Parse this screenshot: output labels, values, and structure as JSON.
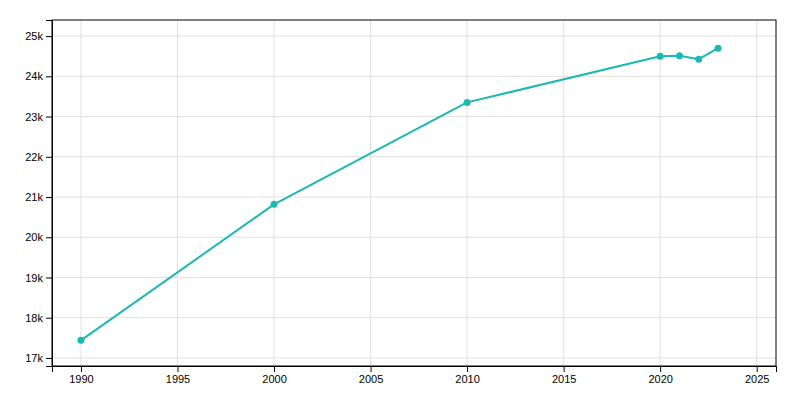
{
  "chart_data": {
    "type": "line",
    "x": [
      1990,
      2000,
      2010,
      2020,
      2021,
      2022,
      2023
    ],
    "values": [
      17438,
      20818,
      23352,
      24500,
      24512,
      24425,
      24700
    ],
    "color": "#1cb8b4",
    "marker": "circle",
    "xlim": [
      1988.5,
      2026
    ],
    "ylim": [
      16800,
      25400
    ],
    "xticks": [
      1990,
      1995,
      2000,
      2005,
      2010,
      2015,
      2020,
      2025
    ],
    "yticks": [
      {
        "value": 17000,
        "label": "17k"
      },
      {
        "value": 18000,
        "label": "18k"
      },
      {
        "value": 19000,
        "label": "19k"
      },
      {
        "value": 20000,
        "label": "20k"
      },
      {
        "value": 21000,
        "label": "21k"
      },
      {
        "value": 22000,
        "label": "22k"
      },
      {
        "value": 23000,
        "label": "23k"
      },
      {
        "value": 24000,
        "label": "24k"
      },
      {
        "value": 25000,
        "label": "25k"
      }
    ],
    "grid": true
  }
}
